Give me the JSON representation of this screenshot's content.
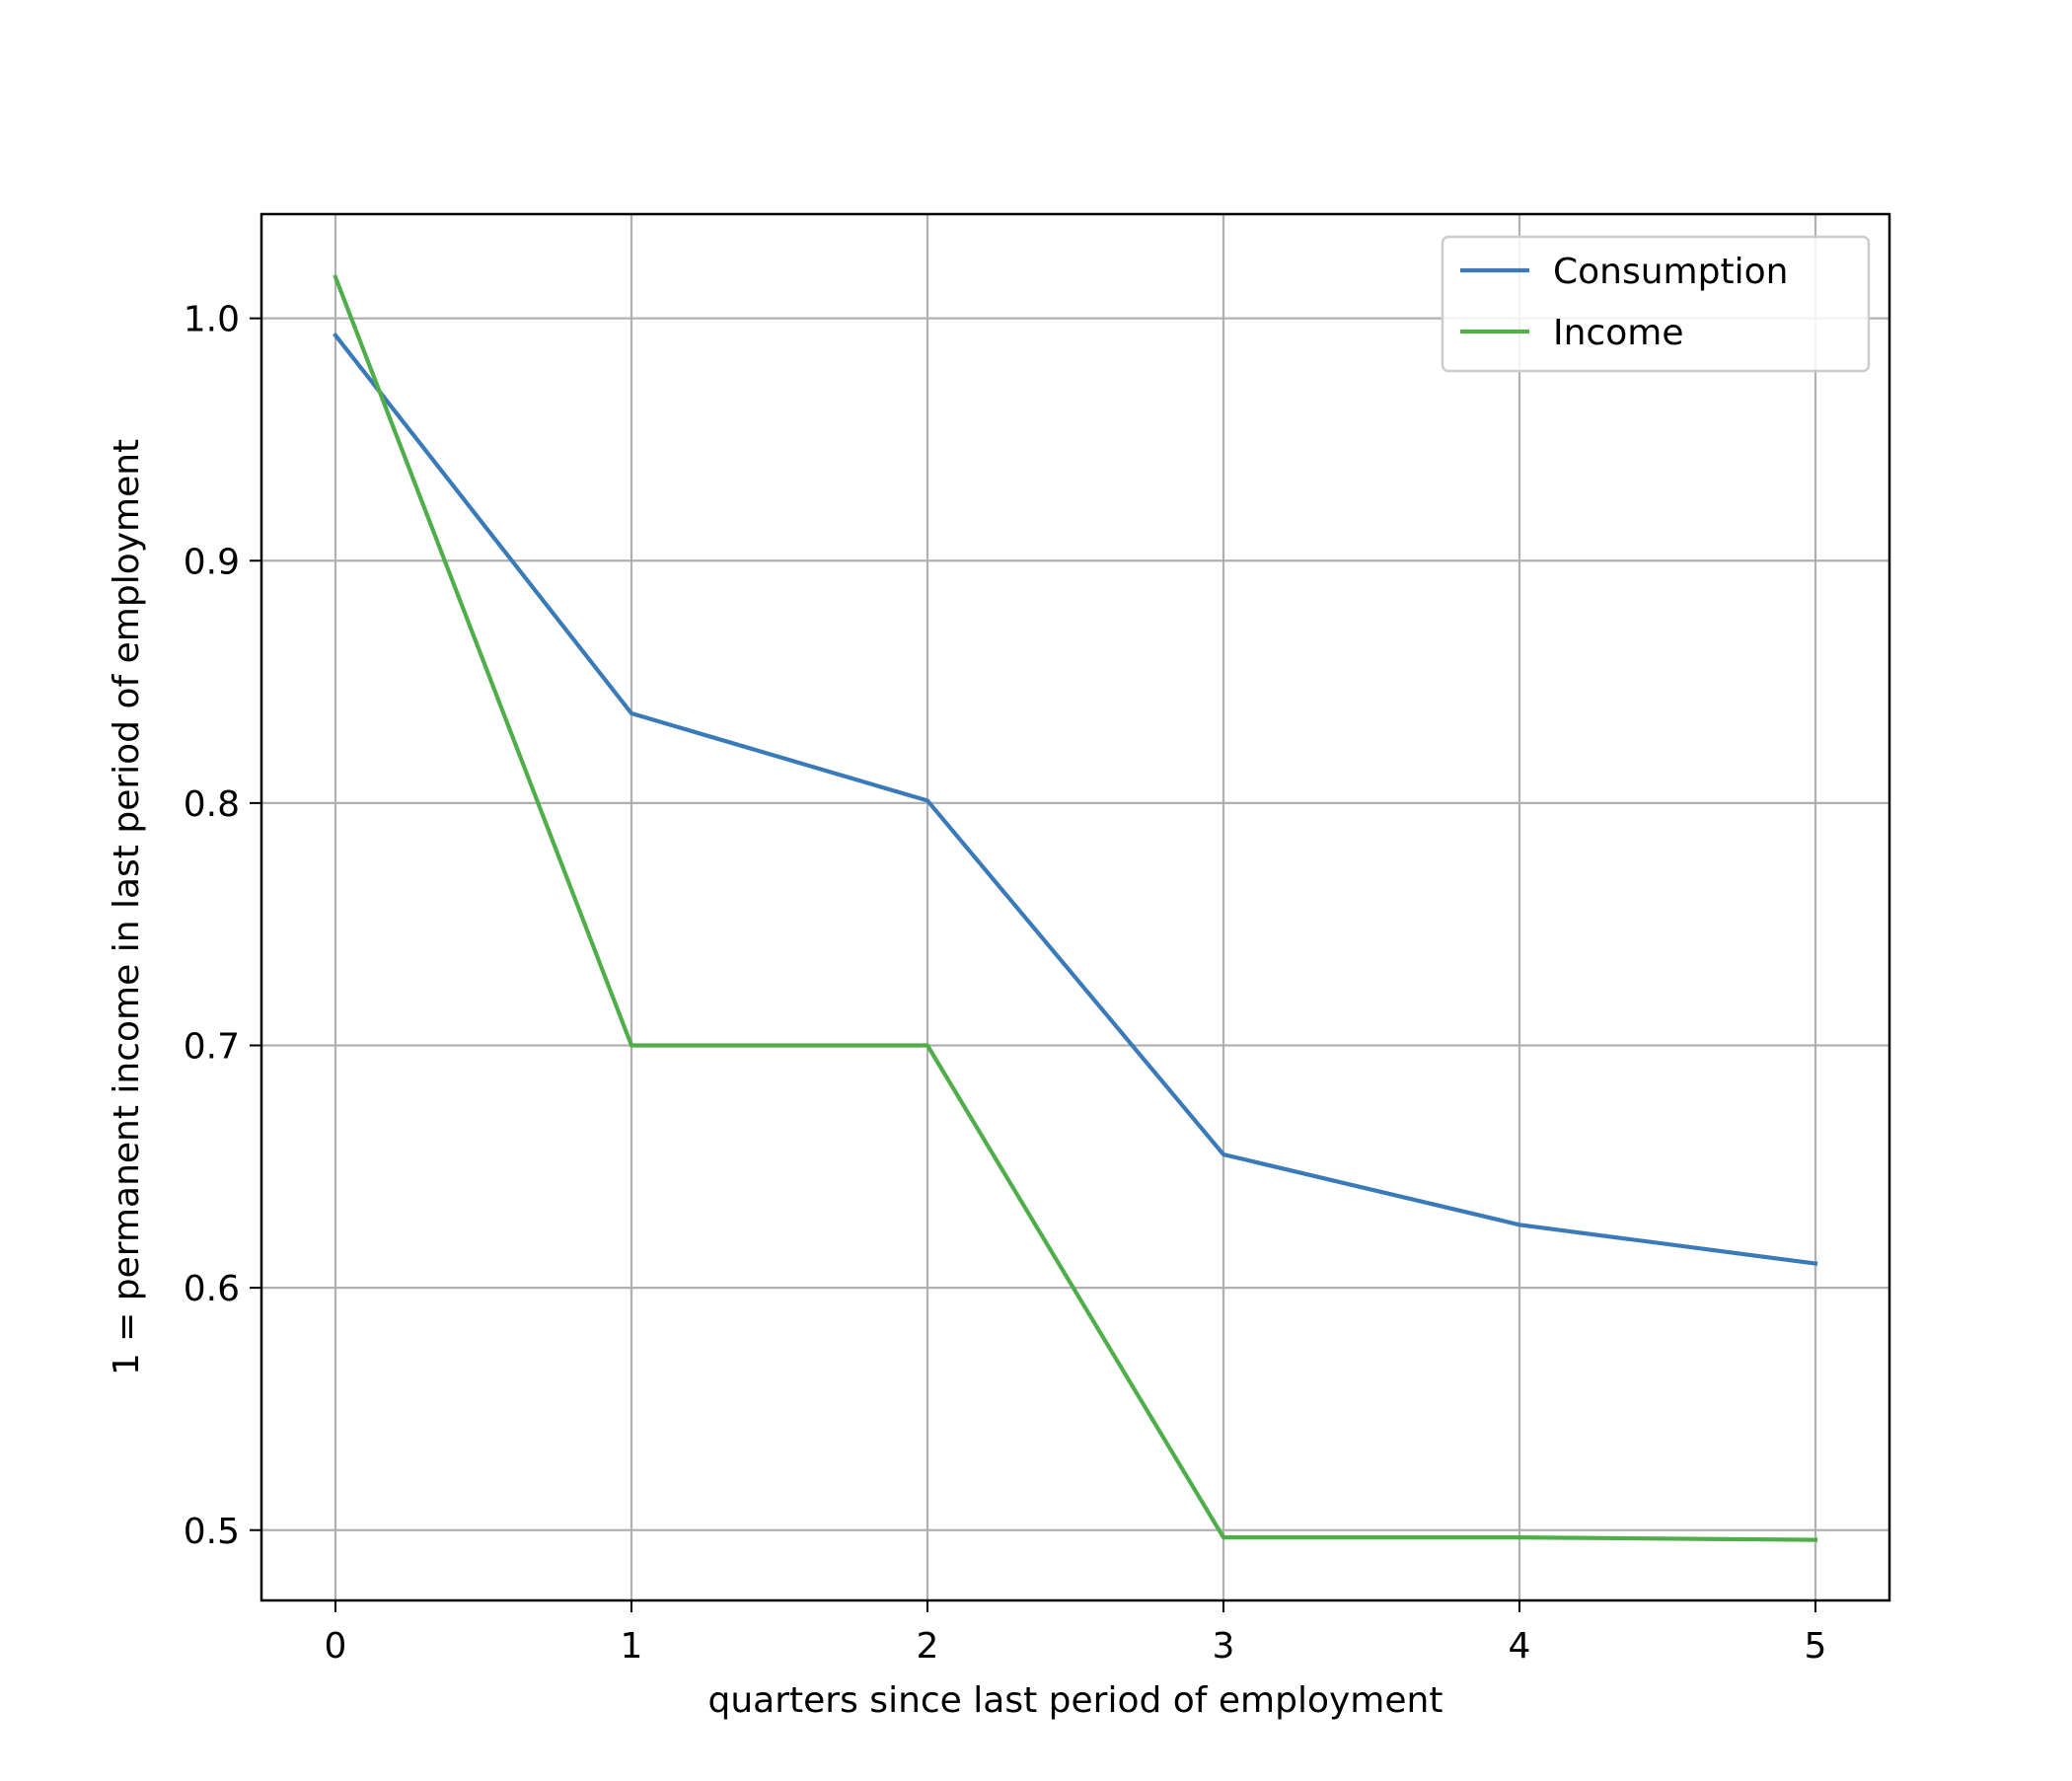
{
  "chart_data": {
    "type": "line",
    "title": "",
    "xlabel": "quarters since last period of employment",
    "ylabel": "1 = permanent income in last period of employment",
    "x": [
      0,
      1,
      2,
      3,
      4,
      5
    ],
    "series": [
      {
        "name": "Consumption",
        "color": "#3a7ab8",
        "values": [
          0.993,
          0.837,
          0.801,
          0.655,
          0.626,
          0.61
        ]
      },
      {
        "name": "Income",
        "color": "#4fae4a",
        "values": [
          1.017,
          0.7,
          0.7,
          0.497,
          0.497,
          0.496
        ]
      }
    ],
    "xlim": [
      -0.25,
      5.25
    ],
    "ylim": [
      0.471,
      1.043
    ],
    "xticks": [
      0,
      1,
      2,
      3,
      4,
      5
    ],
    "xtick_labels": [
      "0",
      "1",
      "2",
      "3",
      "4",
      "5"
    ],
    "yticks": [
      0.5,
      0.6,
      0.7,
      0.8,
      0.9,
      1.0
    ],
    "ytick_labels": [
      "0.5",
      "0.6",
      "0.7",
      "0.8",
      "0.9",
      "1.0"
    ],
    "grid": true,
    "grid_color": "#b0b0b0",
    "legend_position": "top-right"
  }
}
